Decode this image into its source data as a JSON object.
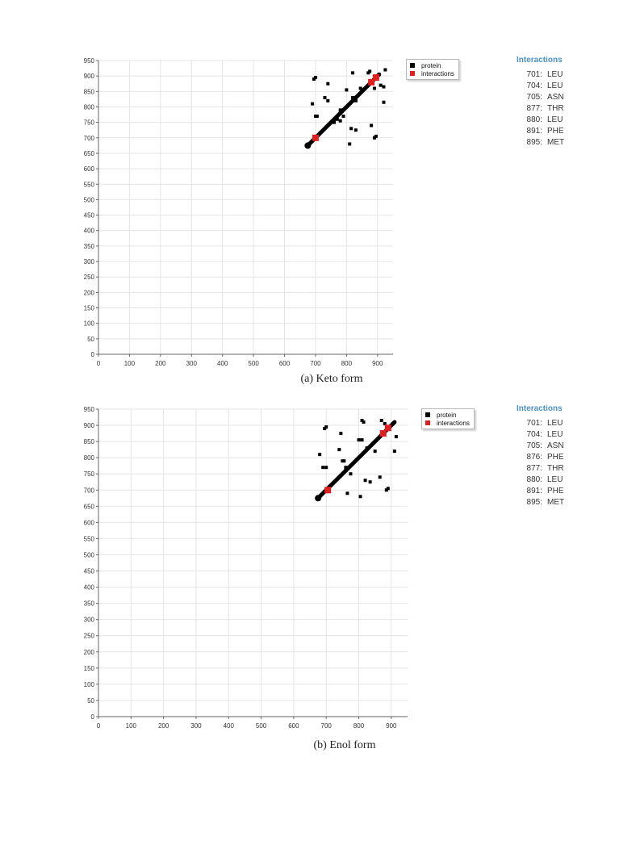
{
  "colors": {
    "protein": "#000000",
    "interactions": "#e02020",
    "grid": "#e4e4e4",
    "axis": "#666666",
    "interactions_title": "#4a8fc6"
  },
  "chart_data": [
    {
      "type": "scatter",
      "caption": "(a) Keto form",
      "xlim": [
        0,
        950
      ],
      "ylim": [
        0,
        950
      ],
      "xticks": [
        0,
        100,
        200,
        300,
        400,
        500,
        600,
        700,
        800,
        900
      ],
      "yticks": [
        0,
        50,
        100,
        150,
        200,
        250,
        300,
        350,
        400,
        450,
        500,
        550,
        600,
        650,
        700,
        750,
        800,
        850,
        900,
        950
      ],
      "grid": true,
      "legend_placement": "top-right",
      "legend": [
        "protein",
        "interactions"
      ],
      "series": [
        {
          "name": "protein",
          "diagonal": [
            675,
            905
          ],
          "x": [
            695,
            700,
            780,
            785,
            730,
            740,
            790,
            820,
            845,
            890,
            910,
            920,
            925,
            815,
            830,
            740,
            770,
            780,
            880,
            890,
            700,
            760,
            810,
            830,
            895,
            905,
            920,
            690,
            705,
            870,
            875,
            800,
            820
          ],
          "y": [
            890,
            895,
            790,
            785,
            830,
            875,
            770,
            910,
            860,
            860,
            870,
            865,
            920,
            730,
            725,
            820,
            760,
            755,
            740,
            700,
            770,
            750,
            680,
            820,
            705,
            905,
            815,
            810,
            770,
            910,
            915,
            855,
            830
          ]
        },
        {
          "name": "interactions",
          "x": [
            700,
            880,
            895
          ],
          "y": [
            700,
            880,
            895
          ]
        }
      ],
      "interactions": {
        "title": "Interactions",
        "items": [
          {
            "num": "701:",
            "res": "LEU"
          },
          {
            "num": "704:",
            "res": "LEU"
          },
          {
            "num": "705:",
            "res": "ASN"
          },
          {
            "num": "877:",
            "res": "THR"
          },
          {
            "num": "880:",
            "res": "LEU"
          },
          {
            "num": "891:",
            "res": "PHE"
          },
          {
            "num": "895:",
            "res": "MET"
          }
        ]
      }
    },
    {
      "type": "scatter",
      "caption": "(b) Enol form",
      "xlim": [
        0,
        950
      ],
      "ylim": [
        0,
        950
      ],
      "xticks": [
        0,
        100,
        200,
        300,
        400,
        500,
        600,
        700,
        800,
        900
      ],
      "yticks": [
        0,
        50,
        100,
        150,
        200,
        250,
        300,
        350,
        400,
        450,
        500,
        550,
        600,
        650,
        700,
        750,
        800,
        850,
        900,
        950
      ],
      "grid": true,
      "legend_placement": "top-right",
      "legend": [
        "protein",
        "interactions"
      ],
      "series": [
        {
          "name": "protein",
          "diagonal": [
            675,
            910
          ],
          "x": [
            695,
            700,
            740,
            745,
            755,
            760,
            775,
            810,
            815,
            870,
            880,
            905,
            915,
            820,
            835,
            850,
            750,
            760,
            865,
            885,
            700,
            765,
            805,
            825,
            890,
            910,
            680,
            690,
            710,
            800,
            810
          ],
          "y": [
            890,
            895,
            825,
            875,
            790,
            760,
            750,
            855,
            910,
            915,
            905,
            905,
            865,
            730,
            725,
            820,
            790,
            770,
            740,
            700,
            770,
            690,
            680,
            830,
            705,
            820,
            810,
            770,
            710,
            855,
            915
          ]
        },
        {
          "name": "interactions",
          "x": [
            705,
            875,
            890
          ],
          "y": [
            700,
            875,
            892
          ]
        }
      ],
      "interactions": {
        "title": "Interactions",
        "items": [
          {
            "num": "701:",
            "res": "LEU"
          },
          {
            "num": "704:",
            "res": "LEU"
          },
          {
            "num": "705:",
            "res": "ASN"
          },
          {
            "num": "876:",
            "res": "PHE"
          },
          {
            "num": "877:",
            "res": "THR"
          },
          {
            "num": "880:",
            "res": "LEU"
          },
          {
            "num": "891:",
            "res": "PHE"
          },
          {
            "num": "895:",
            "res": "MET"
          }
        ]
      }
    }
  ]
}
